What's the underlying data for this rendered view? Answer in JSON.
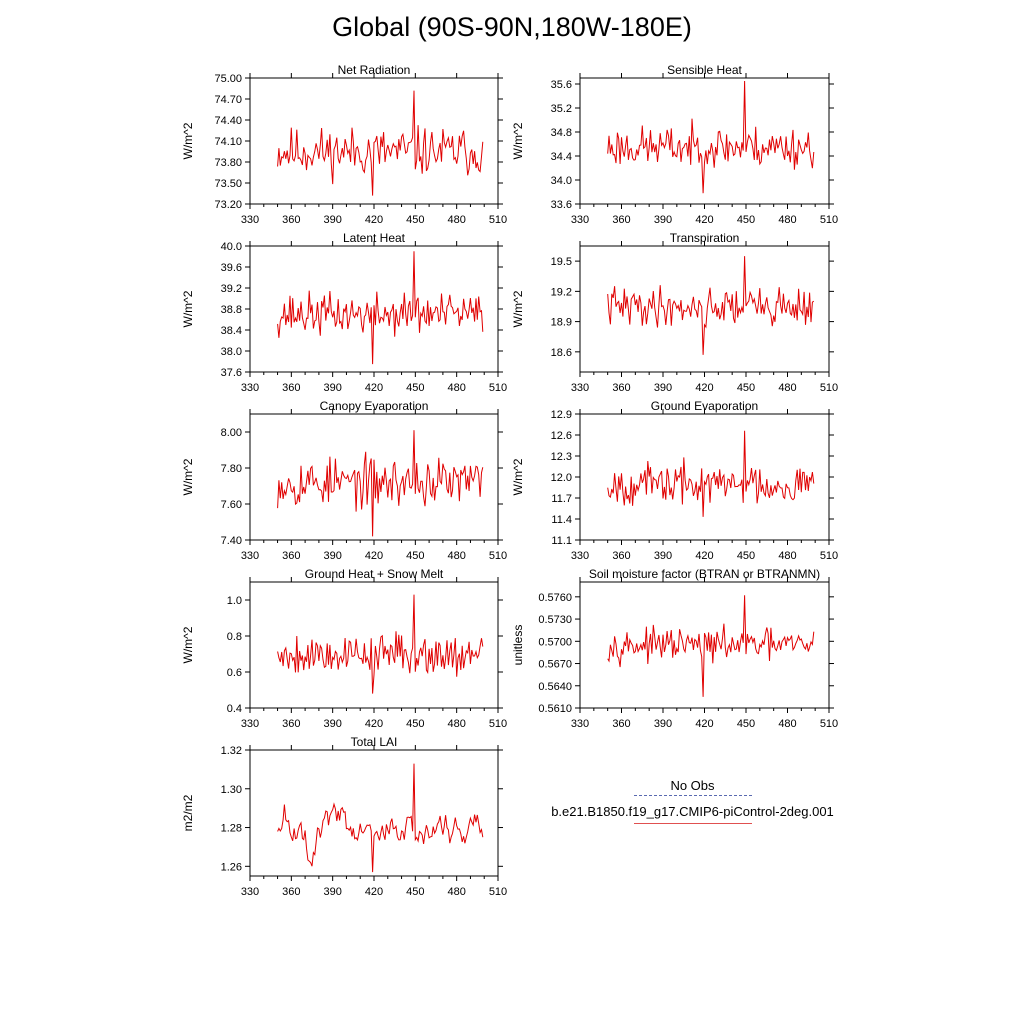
{
  "figure_title": "Global (90S-90N,180W-180E)",
  "legend": {
    "obs_label": "No Obs",
    "case_label": "b.e21.B1850.f19_g17.CMIP6-piControl-2deg.001",
    "obs_color": "#1f2f8f",
    "case_color": "#e00000"
  },
  "chart_data": [
    {
      "type": "line",
      "title": "Net Radiation",
      "ylabel": "W/m^2",
      "xlim": [
        330,
        510
      ],
      "xticks": [
        330,
        360,
        390,
        420,
        450,
        480,
        510
      ],
      "ylim": [
        73.2,
        75.0
      ],
      "yticks": [
        "73.20",
        "73.50",
        "73.80",
        "74.10",
        "74.40",
        "74.70",
        "75.00"
      ],
      "ytickvals": [
        73.2,
        73.5,
        73.8,
        74.1,
        74.4,
        74.7,
        75.0
      ],
      "series": [
        {
          "name": "b.e21.B1850.f19_g17.CMIP6-piControl-2deg.001",
          "color": "#e00000",
          "x_start": 350,
          "x_end": 499,
          "seed": 11,
          "mean": 73.95,
          "amp": 0.3,
          "min": 73.32,
          "max": 74.82
        }
      ]
    },
    {
      "type": "line",
      "title": "Sensible Heat",
      "ylabel": "W/m^2",
      "xlim": [
        330,
        510
      ],
      "xticks": [
        330,
        360,
        390,
        420,
        450,
        480,
        510
      ],
      "ylim": [
        33.6,
        35.7
      ],
      "yticks": [
        "33.6",
        "34.0",
        "34.4",
        "34.8",
        "35.2",
        "35.6"
      ],
      "ytickvals": [
        33.6,
        34.0,
        34.4,
        34.8,
        35.2,
        35.6
      ],
      "series": [
        {
          "name": "b.e21.B1850.f19_g17.CMIP6-piControl-2deg.001",
          "color": "#e00000",
          "x_start": 350,
          "x_end": 499,
          "seed": 23,
          "mean": 34.55,
          "amp": 0.3,
          "min": 33.78,
          "max": 35.65
        }
      ]
    },
    {
      "type": "line",
      "title": "Latent Heat",
      "ylabel": "W/m^2",
      "xlim": [
        330,
        510
      ],
      "xticks": [
        330,
        360,
        390,
        420,
        450,
        480,
        510
      ],
      "ylim": [
        37.6,
        40.0
      ],
      "yticks": [
        "37.6",
        "38.0",
        "38.4",
        "38.8",
        "39.2",
        "39.6",
        "40.0"
      ],
      "ytickvals": [
        37.6,
        38.0,
        38.4,
        38.8,
        39.2,
        39.6,
        40.0
      ],
      "series": [
        {
          "name": "b.e21.B1850.f19_g17.CMIP6-piControl-2deg.001",
          "color": "#e00000",
          "x_start": 350,
          "x_end": 499,
          "seed": 37,
          "mean": 38.7,
          "amp": 0.35,
          "min": 37.75,
          "max": 39.9
        }
      ]
    },
    {
      "type": "line",
      "title": "Transpiration",
      "ylabel": "W/m^2",
      "xlim": [
        330,
        510
      ],
      "xticks": [
        330,
        360,
        390,
        420,
        450,
        480,
        510
      ],
      "ylim": [
        18.4,
        19.65
      ],
      "yticks": [
        "18.6",
        "18.9",
        "19.2",
        "19.5"
      ],
      "ytickvals": [
        18.6,
        18.9,
        19.2,
        19.5
      ],
      "series": [
        {
          "name": "b.e21.B1850.f19_g17.CMIP6-piControl-2deg.001",
          "color": "#e00000",
          "x_start": 350,
          "x_end": 499,
          "seed": 41,
          "mean": 19.05,
          "amp": 0.17,
          "min": 18.57,
          "max": 19.55
        }
      ]
    },
    {
      "type": "line",
      "title": "Canopy Evaporation",
      "ylabel": "W/m^2",
      "xlim": [
        330,
        510
      ],
      "xticks": [
        330,
        360,
        390,
        420,
        450,
        480,
        510
      ],
      "ylim": [
        7.4,
        8.1
      ],
      "yticks": [
        "7.40",
        "7.60",
        "7.80",
        "8.00"
      ],
      "ytickvals": [
        7.4,
        7.6,
        7.8,
        8.0
      ],
      "series": [
        {
          "name": "b.e21.B1850.f19_g17.CMIP6-piControl-2deg.001",
          "color": "#e00000",
          "x_start": 350,
          "x_end": 499,
          "seed": 53,
          "mean": 7.72,
          "amp": 0.12,
          "min": 7.42,
          "max": 8.01
        }
      ]
    },
    {
      "type": "line",
      "title": "Ground Evaporation",
      "ylabel": "W/m^2",
      "xlim": [
        330,
        510
      ],
      "xticks": [
        330,
        360,
        390,
        420,
        450,
        480,
        510
      ],
      "ylim": [
        11.1,
        12.9
      ],
      "yticks": [
        "11.1",
        "11.4",
        "11.7",
        "12.0",
        "12.3",
        "12.6",
        "12.9"
      ],
      "ytickvals": [
        11.1,
        11.4,
        11.7,
        12.0,
        12.3,
        12.6,
        12.9
      ],
      "series": [
        {
          "name": "b.e21.B1850.f19_g17.CMIP6-piControl-2deg.001",
          "color": "#e00000",
          "x_start": 350,
          "x_end": 499,
          "seed": 67,
          "mean": 11.9,
          "amp": 0.25,
          "min": 11.43,
          "max": 12.66
        }
      ]
    },
    {
      "type": "line",
      "title": "Ground Heat + Snow Melt",
      "ylabel": "W/m^2",
      "xlim": [
        330,
        510
      ],
      "xticks": [
        330,
        360,
        390,
        420,
        450,
        480,
        510
      ],
      "ylim": [
        0.4,
        1.1
      ],
      "yticks": [
        "0.4",
        "0.6",
        "0.8",
        "1.0"
      ],
      "ytickvals": [
        0.4,
        0.6,
        0.8,
        1.0
      ],
      "series": [
        {
          "name": "b.e21.B1850.f19_g17.CMIP6-piControl-2deg.001",
          "color": "#e00000",
          "x_start": 350,
          "x_end": 499,
          "seed": 79,
          "mean": 0.7,
          "amp": 0.1,
          "min": 0.48,
          "max": 1.03
        }
      ]
    },
    {
      "type": "line",
      "title": "Soil moisture factor (BTRAN or BTRANMN)",
      "ylabel": "unitless",
      "xlim": [
        330,
        510
      ],
      "xticks": [
        330,
        360,
        390,
        420,
        450,
        480,
        510
      ],
      "ylim": [
        0.561,
        0.578
      ],
      "yticks": [
        "0.5610",
        "0.5640",
        "0.5670",
        "0.5700",
        "0.5730",
        "0.5760"
      ],
      "ytickvals": [
        0.561,
        0.564,
        0.567,
        0.57,
        0.573,
        0.576
      ],
      "series": [
        {
          "name": "b.e21.B1850.f19_g17.CMIP6-piControl-2deg.001",
          "color": "#e00000",
          "x_start": 350,
          "x_end": 499,
          "seed": 97,
          "mean": 0.5695,
          "amp": 0.0018,
          "min": 0.5625,
          "max": 0.5762
        }
      ]
    },
    {
      "type": "line",
      "title": "Total LAI",
      "ylabel": "m2/m2",
      "xlim": [
        330,
        510
      ],
      "xticks": [
        330,
        360,
        390,
        420,
        450,
        480,
        510
      ],
      "ylim": [
        1.255,
        1.32
      ],
      "yticks": [
        "1.26",
        "1.28",
        "1.30",
        "1.32"
      ],
      "ytickvals": [
        1.26,
        1.28,
        1.3,
        1.32
      ],
      "series": [
        {
          "name": "b.e21.B1850.f19_g17.CMIP6-piControl-2deg.001",
          "color": "#e00000",
          "x_start": 350,
          "x_end": 499,
          "seed": 101,
          "mean": 1.28,
          "amp": 0.008,
          "min": 1.257,
          "max": 1.313,
          "smooth": true
        }
      ]
    }
  ]
}
